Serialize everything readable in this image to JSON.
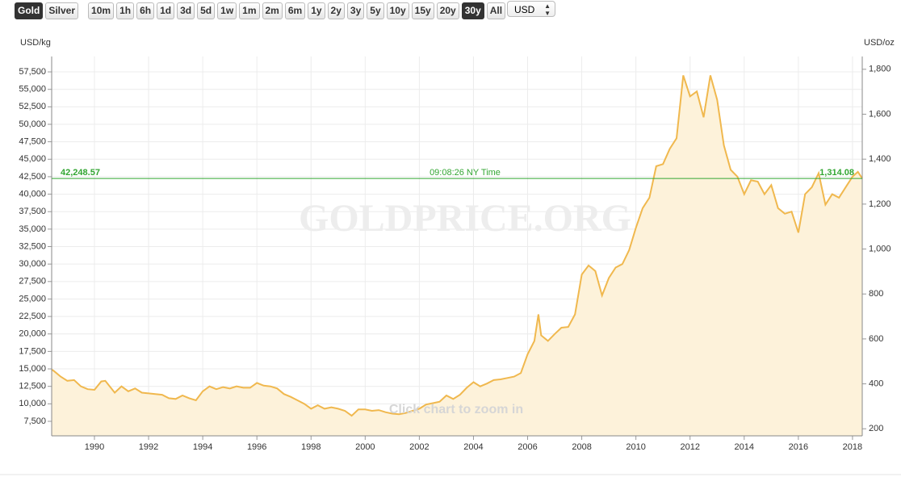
{
  "toolbar": {
    "metals": [
      {
        "label": "Gold",
        "active": true
      },
      {
        "label": "Silver",
        "active": false
      }
    ],
    "ranges": [
      {
        "label": "10m",
        "active": false
      },
      {
        "label": "1h",
        "active": false
      },
      {
        "label": "6h",
        "active": false
      },
      {
        "label": "1d",
        "active": false
      },
      {
        "label": "3d",
        "active": false
      },
      {
        "label": "5d",
        "active": false
      },
      {
        "label": "1w",
        "active": false
      },
      {
        "label": "1m",
        "active": false
      },
      {
        "label": "2m",
        "active": false
      },
      {
        "label": "6m",
        "active": false
      },
      {
        "label": "1y",
        "active": false
      },
      {
        "label": "2y",
        "active": false
      },
      {
        "label": "3y",
        "active": false
      },
      {
        "label": "5y",
        "active": false
      },
      {
        "label": "10y",
        "active": false
      },
      {
        "label": "15y",
        "active": false
      },
      {
        "label": "20y",
        "active": false
      },
      {
        "label": "30y",
        "active": true
      },
      {
        "label": "All",
        "active": false
      }
    ],
    "currency": "USD"
  },
  "chart_data": {
    "type": "area",
    "y_label": "USD/kg",
    "y2_label": "USD/oz",
    "watermark": "GOLDPRICE.ORG",
    "hint": "Click chart to zoom in",
    "color": "#f0b84e",
    "fill": "#fdf2da",
    "grid": true,
    "xlim": [
      1988.42,
      2018.36
    ],
    "xticks": [
      1990,
      1992,
      1994,
      1996,
      1998,
      2000,
      2002,
      2004,
      2006,
      2008,
      2010,
      2012,
      2014,
      2016,
      2018
    ],
    "ylim": [
      5420,
      59700
    ],
    "yticks": [
      {
        "value": 7500,
        "label": "7,500"
      },
      {
        "value": 10000,
        "label": "10,000"
      },
      {
        "value": 12500,
        "label": "12,500"
      },
      {
        "value": 15000,
        "label": "15,000"
      },
      {
        "value": 17500,
        "label": "17,500"
      },
      {
        "value": 20000,
        "label": "20,000"
      },
      {
        "value": 22500,
        "label": "22,500"
      },
      {
        "value": 25000,
        "label": "25,000"
      },
      {
        "value": 27500,
        "label": "27,500"
      },
      {
        "value": 30000,
        "label": "30,000"
      },
      {
        "value": 32500,
        "label": "32,500"
      },
      {
        "value": 35000,
        "label": "35,000"
      },
      {
        "value": 37500,
        "label": "37,500"
      },
      {
        "value": 40000,
        "label": "40,000"
      },
      {
        "value": 42500,
        "label": "42,500"
      },
      {
        "value": 45000,
        "label": "45,000"
      },
      {
        "value": 47500,
        "label": "47,500"
      },
      {
        "value": 50000,
        "label": "50,000"
      },
      {
        "value": 52500,
        "label": "52,500"
      },
      {
        "value": 55000,
        "label": "55,000"
      },
      {
        "value": 57500,
        "label": "57,500"
      }
    ],
    "y2lim": [
      168.6,
      1856.9
    ],
    "y2ticks": [
      200,
      400,
      600,
      800,
      {
        "value": 1000,
        "label": "1,000"
      },
      {
        "value": 1200,
        "label": "1,200"
      },
      {
        "value": 1400,
        "label": "1,400"
      },
      {
        "value": 1600,
        "label": "1,600"
      },
      {
        "value": 1800,
        "label": "1,800"
      }
    ],
    "reference_line": {
      "value": 42248.57,
      "value_label": "42,248.57",
      "y2_value": 1314.08,
      "y2_value_label": "1,314.08",
      "time": "09:08:26 NY Time",
      "color": "#33a633"
    },
    "x": [
      1988.42,
      1988.5,
      1988.75,
      1989,
      1989.25,
      1989.5,
      1989.75,
      1990,
      1990.25,
      1990.4,
      1990.75,
      1991,
      1991.25,
      1991.5,
      1991.75,
      1992,
      1992.25,
      1992.5,
      1992.75,
      1993,
      1993.25,
      1993.5,
      1993.75,
      1994,
      1994.25,
      1994.5,
      1994.75,
      1995,
      1995.25,
      1995.5,
      1995.75,
      1996,
      1996.25,
      1996.5,
      1996.75,
      1997,
      1997.25,
      1997.5,
      1997.75,
      1998,
      1998.25,
      1998.5,
      1998.75,
      1999,
      1999.25,
      1999.5,
      1999.75,
      2000,
      2000.25,
      2000.5,
      2000.75,
      2001,
      2001.25,
      2001.5,
      2001.75,
      2002,
      2002.25,
      2002.5,
      2002.75,
      2003,
      2003.25,
      2003.5,
      2003.75,
      2004,
      2004.25,
      2004.5,
      2004.75,
      2005,
      2005.25,
      2005.5,
      2005.75,
      2006,
      2006.25,
      2006.4,
      2006.5,
      2006.75,
      2007,
      2007.25,
      2007.5,
      2007.75,
      2008,
      2008.25,
      2008.5,
      2008.75,
      2009,
      2009.25,
      2009.5,
      2009.75,
      2010,
      2010.25,
      2010.5,
      2010.75,
      2011,
      2011.25,
      2011.5,
      2011.75,
      2012,
      2012.25,
      2012.5,
      2012.75,
      2013,
      2013.25,
      2013.5,
      2013.75,
      2014,
      2014.25,
      2014.5,
      2014.75,
      2015,
      2015.25,
      2015.5,
      2015.75,
      2016,
      2016.25,
      2016.5,
      2016.75,
      2017,
      2017.25,
      2017.5,
      2017.75,
      2018,
      2018.2,
      2018.36
    ],
    "values": [
      14900,
      14700,
      13900,
      13300,
      13400,
      12500,
      12100,
      12000,
      13200,
      13300,
      11600,
      12500,
      11800,
      12200,
      11600,
      11500,
      11400,
      11300,
      10800,
      10700,
      11200,
      10800,
      10500,
      11800,
      12500,
      12100,
      12400,
      12200,
      12500,
      12300,
      12300,
      13000,
      12600,
      12500,
      12200,
      11400,
      11000,
      10500,
      10000,
      9300,
      9800,
      9300,
      9500,
      9300,
      9000,
      8300,
      9200,
      9200,
      9000,
      9100,
      8800,
      8600,
      8500,
      8700,
      9000,
      9300,
      9900,
      10100,
      10300,
      11200,
      10700,
      11300,
      12300,
      13100,
      12500,
      12900,
      13400,
      13500,
      13700,
      13900,
      14400,
      17100,
      19000,
      22800,
      19800,
      19000,
      20000,
      20900,
      21000,
      22800,
      28500,
      29800,
      29000,
      25500,
      28000,
      29500,
      30000,
      32000,
      35200,
      38000,
      39500,
      44000,
      44300,
      46500,
      48000,
      57000,
      54000,
      54700,
      51000,
      57000,
      53500,
      47000,
      43500,
      42500,
      40000,
      42000,
      41800,
      40000,
      41300,
      38000,
      37200,
      37500,
      34500,
      40000,
      41000,
      43000,
      38500,
      40000,
      39500,
      41000,
      42500,
      43200,
      42250
    ]
  }
}
